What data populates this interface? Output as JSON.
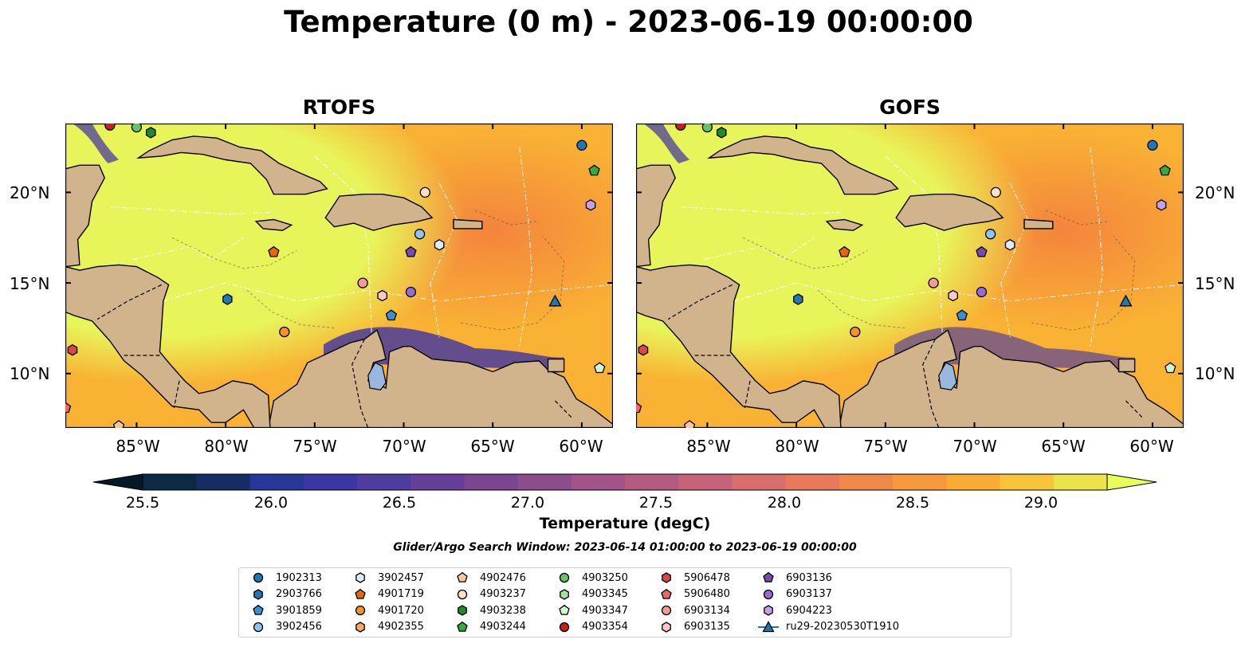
{
  "title": "Temperature (0 m) - 2023-06-19 00:00:00",
  "panels": [
    {
      "title": "RTOFS"
    },
    {
      "title": "GOFS"
    }
  ],
  "lat_ticks": [
    "20°N",
    "15°N",
    "10°N"
  ],
  "lon_ticks": [
    "85°W",
    "80°W",
    "75°W",
    "70°W",
    "65°W",
    "60°W"
  ],
  "colorbar": {
    "label": "Temperature (degC)",
    "ticks": [
      "25.5",
      "26.0",
      "26.5",
      "27.0",
      "27.5",
      "28.0",
      "28.5",
      "29.0"
    ],
    "colors": [
      "#0c2a44",
      "#172d66",
      "#263797",
      "#3a36a2",
      "#4e3c9e",
      "#663f98",
      "#7a4591",
      "#8c4d8c",
      "#a05487",
      "#b45b80",
      "#c6637a",
      "#d86e6e",
      "#e8795b",
      "#f1884b",
      "#f7983c",
      "#f9ab34",
      "#f7c43a",
      "#eae34a"
    ],
    "extend_low": "#04182a",
    "extend_high": "#e8ff5a"
  },
  "search_window": "Glider/Argo Search Window: 2023-06-14 01:00:00 to 2023-06-19 00:00:00",
  "map_colors": {
    "land": "#d2b48c",
    "lake": "#98b8e0",
    "warm": "#e8f55a",
    "mid": "#f9b234",
    "hot": "#f4843d",
    "cool": "#4a3b9e"
  },
  "legend": [
    {
      "label": "1902313",
      "shape": "circle",
      "color": "#1f77b4"
    },
    {
      "label": "2903766",
      "shape": "hexagon",
      "color": "#1f77b4"
    },
    {
      "label": "3901859",
      "shape": "pentagon",
      "color": "#3a8fd0"
    },
    {
      "label": "3902456",
      "shape": "circle",
      "color": "#8fc3ea"
    },
    {
      "label": "3902457",
      "shape": "hexagon",
      "color": "#dcebf9"
    },
    {
      "label": "4901719",
      "shape": "pentagon",
      "color": "#e8660a"
    },
    {
      "label": "4901720",
      "shape": "circle",
      "color": "#f79130"
    },
    {
      "label": "4902355",
      "shape": "hexagon",
      "color": "#f9a860"
    },
    {
      "label": "4902476",
      "shape": "pentagon",
      "color": "#fcc89a"
    },
    {
      "label": "4903237",
      "shape": "circle",
      "color": "#fde1c6"
    },
    {
      "label": "4903238",
      "shape": "hexagon",
      "color": "#1e8a2a"
    },
    {
      "label": "4903244",
      "shape": "pentagon",
      "color": "#34ab3a"
    },
    {
      "label": "4903250",
      "shape": "circle",
      "color": "#66c466"
    },
    {
      "label": "4903345",
      "shape": "hexagon",
      "color": "#a6e0a0"
    },
    {
      "label": "4903347",
      "shape": "pentagon",
      "color": "#d2f5cc"
    },
    {
      "label": "4903354",
      "shape": "circle",
      "color": "#c81e1e"
    },
    {
      "label": "5906478",
      "shape": "hexagon",
      "color": "#d84848"
    },
    {
      "label": "5906480",
      "shape": "pentagon",
      "color": "#e86868"
    },
    {
      "label": "6903134",
      "shape": "circle",
      "color": "#f49a9a"
    },
    {
      "label": "6903135",
      "shape": "hexagon",
      "color": "#fcc8c8"
    },
    {
      "label": "6903136",
      "shape": "pentagon",
      "color": "#7a4ab0"
    },
    {
      "label": "6903137",
      "shape": "circle",
      "color": "#9a6ad0"
    },
    {
      "label": "6904223",
      "shape": "hexagon",
      "color": "#c4a0e8"
    },
    {
      "label": "ru29-20230530T1910",
      "shape": "triangle-line",
      "color": "#1f77b4"
    }
  ],
  "markers": [
    {
      "id": "4903354",
      "lon": -86.5,
      "lat": 23.7
    },
    {
      "id": "4903250",
      "lon": -85.0,
      "lat": 23.6
    },
    {
      "id": "4903238",
      "lon": -84.2,
      "lat": 23.3
    },
    {
      "id": "1902313",
      "lon": -60.0,
      "lat": 22.6
    },
    {
      "id": "4903244",
      "lon": -59.3,
      "lat": 21.2
    },
    {
      "id": "4903237",
      "lon": -68.8,
      "lat": 20.0
    },
    {
      "id": "6904223",
      "lon": -59.5,
      "lat": 19.3
    },
    {
      "id": "3902456",
      "lon": -69.1,
      "lat": 17.7
    },
    {
      "id": "3902457",
      "lon": -68.0,
      "lat": 17.1
    },
    {
      "id": "4901719",
      "lon": -77.3,
      "lat": 16.7
    },
    {
      "id": "6903136",
      "lon": -69.6,
      "lat": 16.7
    },
    {
      "id": "6903134",
      "lon": -72.3,
      "lat": 15.0
    },
    {
      "id": "6903137",
      "lon": -69.6,
      "lat": 14.5
    },
    {
      "id": "6903135",
      "lon": -71.2,
      "lat": 14.3
    },
    {
      "id": "2903766",
      "lon": -79.9,
      "lat": 14.1
    },
    {
      "id": "3901859",
      "lon": -70.7,
      "lat": 13.2
    },
    {
      "id": "4901720",
      "lon": -76.7,
      "lat": 12.3
    },
    {
      "id": "5906478",
      "lon": -88.6,
      "lat": 11.3
    },
    {
      "id": "4903347",
      "lon": -59.0,
      "lat": 10.3
    },
    {
      "id": "5906480",
      "lon": -89.0,
      "lat": 8.1
    },
    {
      "id": "4902476",
      "lon": -86.0,
      "lat": 7.1
    },
    {
      "id": "ru29-20230530T1910",
      "lon": -61.5,
      "lat": 14.0
    }
  ]
}
